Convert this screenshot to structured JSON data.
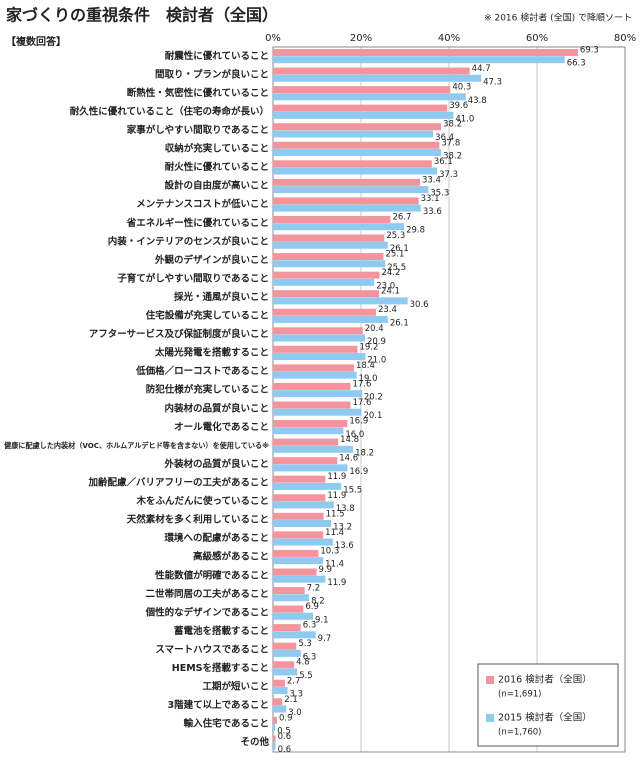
{
  "chart_data": {
    "type": "hbar",
    "title": "家づくりの重視条件　検討者（全国）",
    "note": "※ 2016 検討者 (全国) で降順ソート",
    "subtitle": "【複数回答】",
    "categories": [
      "耐震性に優れていること",
      "間取り・プランが良いこと",
      "断熱性・気密性に優れていること",
      "耐久性に優れていること（住宅の寿命が長い）",
      "家事がしやすい間取りであること",
      "収納が充実していること",
      "耐火性に優れていること",
      "設計の自由度が高いこと",
      "メンテナンスコストが低いこと",
      "省エネルギー性に優れていること",
      "内装・インテリアのセンスが良いこと",
      "外観のデザインが良いこと",
      "子育てがしやすい間取りであること",
      "採光・通風が良いこと",
      "住宅設備が充実していること",
      "アフターサービス及び保証制度が良いこと",
      "太陽光発電を搭載すること",
      "低価格／ローコストであること",
      "防犯仕様が充実していること",
      "内装材の品質が良いこと",
      "オール電化であること",
      "健康に配慮した内装材（VOC、ホルムアルデヒド等を含まない）を使用している※",
      "外装材の品質が良いこと",
      "加齢配慮／バリアフリーの工夫があること",
      "木をふんだんに使っていること",
      "天然素材を多く利用していること",
      "環境への配慮があること",
      "高級感があること",
      "性能数値が明確であること",
      "二世帯同居の工夫があること",
      "個性的なデザインであること",
      "蓄電池を搭載すること",
      "スマートハウスであること",
      "HEMSを搭載すること",
      "工期が短いこと",
      "3階建て以上であること",
      "輸入住宅であること",
      "その他"
    ],
    "series": [
      {
        "name": "2016 検討者（全国）",
        "sample": "(n=1,691)",
        "color": "#f4959d",
        "values": [
          69.3,
          44.7,
          40.3,
          39.6,
          38.2,
          37.8,
          36.1,
          33.4,
          33.1,
          26.7,
          25.3,
          25.1,
          24.2,
          24.1,
          23.4,
          20.4,
          19.2,
          18.4,
          17.6,
          17.6,
          16.9,
          14.8,
          14.6,
          11.9,
          11.9,
          11.5,
          11.4,
          10.3,
          9.9,
          7.2,
          6.9,
          6.3,
          5.3,
          4.8,
          2.7,
          2.1,
          0.9,
          0.6
        ],
        "value_labels": [
          "69.3",
          "44.7",
          "40.3",
          "39.6",
          "38.2",
          "37.8",
          "36.1",
          "33.4",
          "33.1",
          "26.7",
          "25.3",
          "25.1",
          "24.2",
          "24.1",
          "23.4",
          "20.4",
          "19.2",
          "18.4",
          "17.6",
          "17.6",
          "16.9",
          "14.8",
          "14.6",
          "11.9",
          "11.9",
          "11.5",
          "11.4",
          "10.3",
          "9.9",
          "7.2",
          "6.9",
          "6.3",
          "5.3",
          "4.8",
          "2.7",
          "2.1",
          "0.9",
          "0.6"
        ]
      },
      {
        "name": "2015 検討者（全国）",
        "sample": "(n=1,760)",
        "color": "#8fcaf0",
        "values": [
          66.3,
          47.3,
          43.8,
          41.0,
          36.4,
          38.2,
          37.3,
          35.3,
          33.6,
          29.8,
          26.1,
          25.5,
          23.0,
          30.6,
          26.1,
          20.9,
          21.0,
          19.0,
          20.2,
          20.1,
          16.0,
          18.2,
          16.9,
          15.5,
          13.8,
          13.2,
          13.6,
          11.4,
          11.9,
          8.2,
          9.1,
          9.7,
          6.3,
          5.5,
          3.3,
          3.0,
          0.5,
          0.6
        ],
        "value_labels": [
          "66.3",
          "47.3",
          "43.8",
          "41.0",
          "36.4",
          "38.2",
          "37.3",
          "35.3",
          "33.6",
          "29.8",
          "26.1",
          "25.5",
          "23.0",
          "30.6",
          "26.1",
          "20.9",
          "21.0",
          "19.0",
          "20.2",
          "20.1",
          "16.0",
          "18.2",
          "16.9",
          "15.5",
          "13.8",
          "13.2",
          "13.6",
          "11.4",
          "11.9",
          "8.2",
          "9.1",
          "9.7",
          "6.3",
          "5.5",
          "3.3",
          "3.0",
          "0.5",
          "0.6"
        ]
      }
    ],
    "xlim": [
      0,
      80
    ],
    "xticks": [
      {
        "value": 0,
        "label": "0%"
      },
      {
        "value": 20,
        "label": "20%"
      },
      {
        "value": 40,
        "label": "40%"
      },
      {
        "value": 60,
        "label": "60%"
      },
      {
        "value": 80,
        "label": "80%"
      }
    ],
    "grid": true,
    "legend": "lower-right"
  }
}
